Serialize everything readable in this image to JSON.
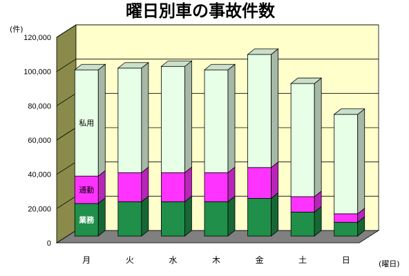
{
  "chart_data": {
    "type": "bar",
    "stacked": true,
    "three_d": true,
    "title": "曜日別車の事故件数",
    "ylabel": "(件)",
    "xlabel": "(曜日)",
    "ylim": [
      0,
      120000
    ],
    "yticks": [
      "0",
      "20,000",
      "40,000",
      "60,000",
      "80,000",
      "100,000",
      "120,000"
    ],
    "grid": true,
    "categories": [
      "月",
      "火",
      "水",
      "木",
      "金",
      "土",
      "日"
    ],
    "series": [
      {
        "name": "業務",
        "values": [
          19000,
          20000,
          20000,
          20000,
          22000,
          14000,
          8000
        ]
      },
      {
        "name": "通勤",
        "values": [
          16000,
          17000,
          17000,
          17000,
          18000,
          9000,
          5000
        ]
      },
      {
        "name": "私用",
        "values": [
          62000,
          61000,
          62000,
          60000,
          66000,
          66000,
          58000
        ]
      }
    ],
    "colors": {
      "業務": "#1f8f4a",
      "通勤": "#ff33ff",
      "私用": "#e6ffe6",
      "wall": "#ffffcc",
      "floor": "#808080",
      "side_wall": "#8a8a4a"
    }
  }
}
